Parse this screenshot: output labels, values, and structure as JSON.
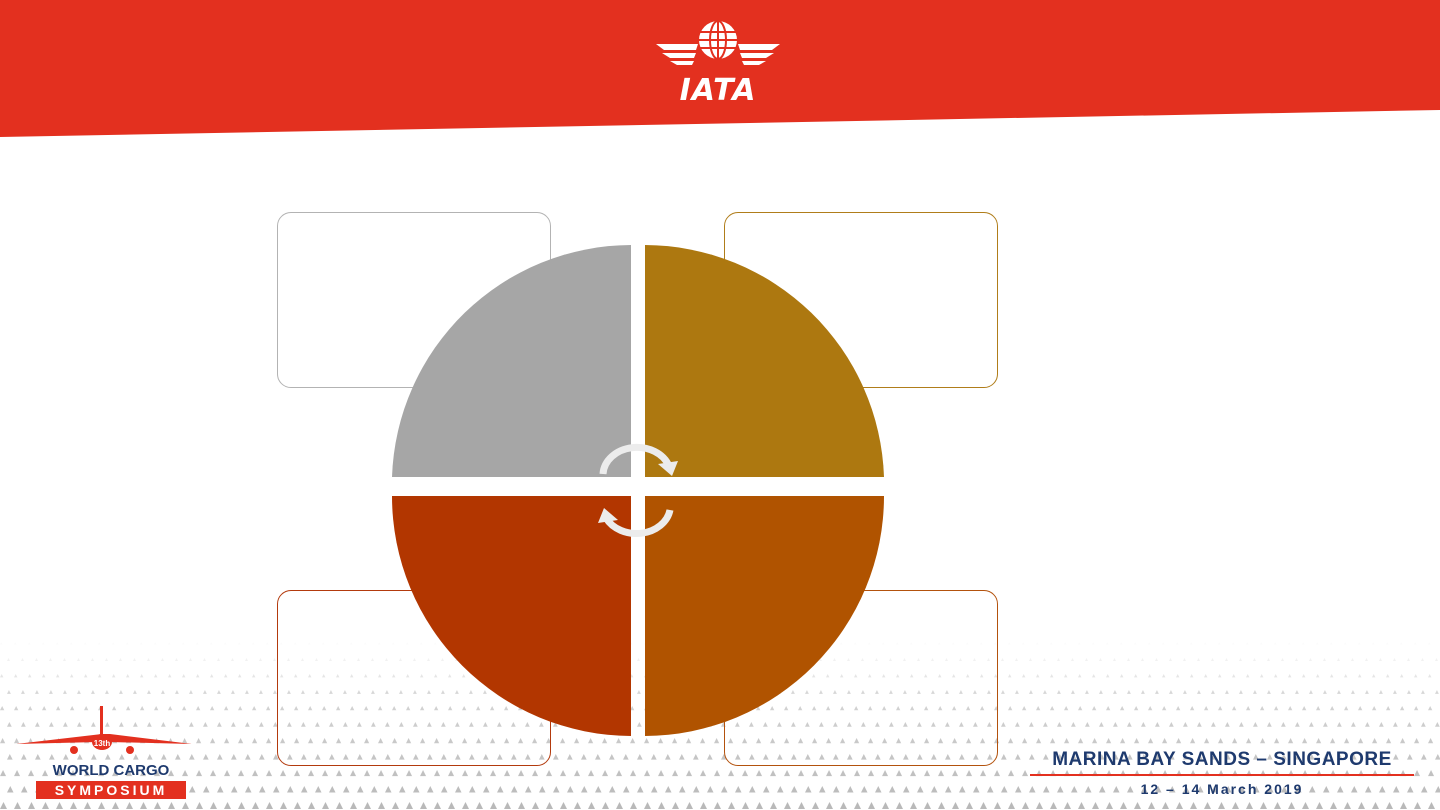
{
  "brand": {
    "name": "IATA",
    "red": "#e3301f",
    "navy": "#1e3a6e"
  },
  "event": {
    "logo_line1": "WORLD CARGO",
    "logo_line2": "SYMPOSIUM",
    "edition": "13th",
    "venue": "MARINA BAY SANDS – SINGAPORE",
    "dates": "12 – 14 March 2019"
  },
  "cycle": {
    "colors": {
      "top_left": "#a6a6a6",
      "top_right": "#ad7810",
      "bottom_left": "#b23600",
      "bottom_right": "#b05300"
    },
    "box_borders": {
      "top_left": "#b3b3b3",
      "top_right": "#b07d1a",
      "bottom_left": "#b33a0d",
      "bottom_right": "#b3520d"
    },
    "icon": "circular-arrows-icon"
  }
}
